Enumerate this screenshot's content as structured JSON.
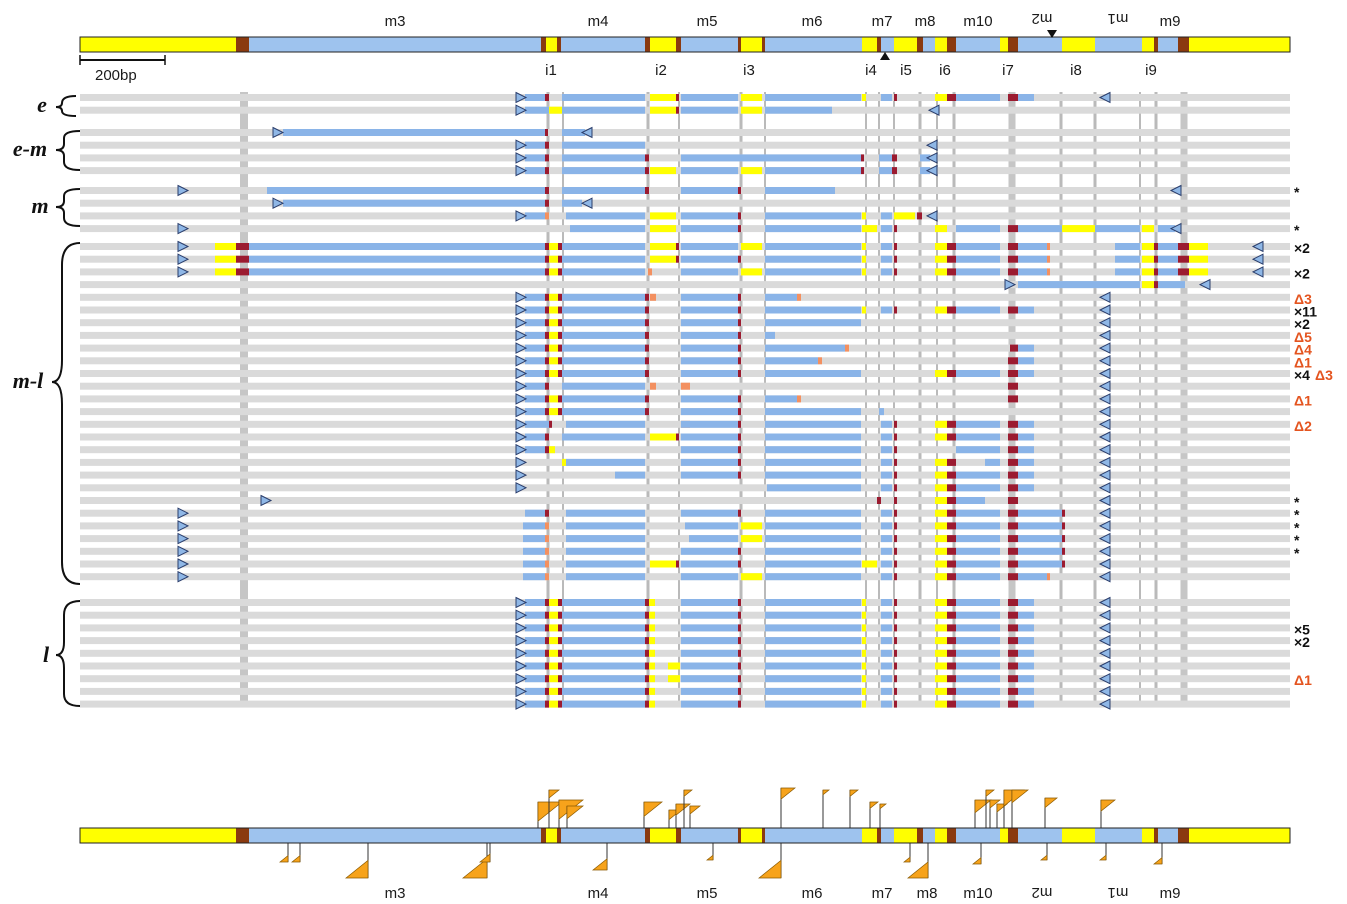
{
  "colors": {
    "exon": "#FFFF00",
    "intron_light": "#9EC3EE",
    "read": "#8AB4E8",
    "splice": "#9B1B30",
    "junction": "#8A3A10",
    "overhang": "#F39060",
    "track": "#DADADA",
    "guide": "#A9A9A9",
    "triangle": "#8FB7E6",
    "flag": "#F7A31B",
    "delta": "#E4541F",
    "text": "#111111"
  },
  "scale_label": "200bp",
  "top_labels": [
    {
      "text": "m3",
      "mirrored": false
    },
    {
      "text": "m4",
      "mirrored": false
    },
    {
      "text": "m5",
      "mirrored": false
    },
    {
      "text": "m6",
      "mirrored": false
    },
    {
      "text": "m7",
      "mirrored": false
    },
    {
      "text": "m8",
      "mirrored": false
    },
    {
      "text": "m10",
      "mirrored": false
    },
    {
      "text": "m2",
      "mirrored": true
    },
    {
      "text": "m1",
      "mirrored": true
    },
    {
      "text": "m9",
      "mirrored": false
    }
  ],
  "intron_labels": [
    "i1",
    "i2",
    "i3",
    "i4",
    "i5",
    "i6",
    "i7",
    "i8",
    "i9"
  ],
  "groups": [
    {
      "label": "e"
    },
    {
      "label": "e-m"
    },
    {
      "label": "m"
    },
    {
      "label": "m-l"
    },
    {
      "label": "l"
    }
  ],
  "row_notes": [
    {
      "row": 6,
      "text": "*",
      "kind": "star"
    },
    {
      "row": 9,
      "text": "*",
      "kind": "star"
    },
    {
      "row": 10,
      "text": "×2",
      "kind": "count"
    },
    {
      "row": 12,
      "text": "×2",
      "kind": "count"
    },
    {
      "row": 14,
      "text": "Δ3",
      "kind": "delta"
    },
    {
      "row": 15,
      "text": "×11",
      "kind": "count"
    },
    {
      "row": 16,
      "text": "×2",
      "kind": "count"
    },
    {
      "row": 17,
      "text": "Δ5",
      "kind": "delta"
    },
    {
      "row": 18,
      "text": "Δ4",
      "kind": "delta"
    },
    {
      "row": 19,
      "text": "Δ1",
      "kind": "delta"
    },
    {
      "row": 20,
      "text": "×4",
      "kind": "count"
    },
    {
      "row": 20,
      "text": "Δ3",
      "kind": "delta",
      "offset": true
    },
    {
      "row": 22,
      "text": "Δ1",
      "kind": "delta"
    },
    {
      "row": 24,
      "text": "Δ2",
      "kind": "delta"
    },
    {
      "row": 30,
      "text": "*",
      "kind": "star"
    },
    {
      "row": 31,
      "text": "*",
      "kind": "star"
    },
    {
      "row": 32,
      "text": "*",
      "kind": "star"
    },
    {
      "row": 33,
      "text": "*",
      "kind": "star"
    },
    {
      "row": 34,
      "text": "*",
      "kind": "star"
    },
    {
      "row": 39,
      "text": "×5",
      "kind": "count"
    },
    {
      "row": 40,
      "text": "×2",
      "kind": "count"
    },
    {
      "row": 43,
      "text": "Δ1",
      "kind": "delta"
    }
  ],
  "bottom_labels": [
    {
      "text": "m3",
      "mirrored": false
    },
    {
      "text": "m4",
      "mirrored": false
    },
    {
      "text": "m5",
      "mirrored": false
    },
    {
      "text": "m6",
      "mirrored": false
    },
    {
      "text": "m7",
      "mirrored": false
    },
    {
      "text": "m8",
      "mirrored": false
    },
    {
      "text": "m10",
      "mirrored": false
    },
    {
      "text": "m2",
      "mirrored": true
    },
    {
      "text": "m1",
      "mirrored": true
    },
    {
      "text": "m9",
      "mirrored": false
    }
  ]
}
